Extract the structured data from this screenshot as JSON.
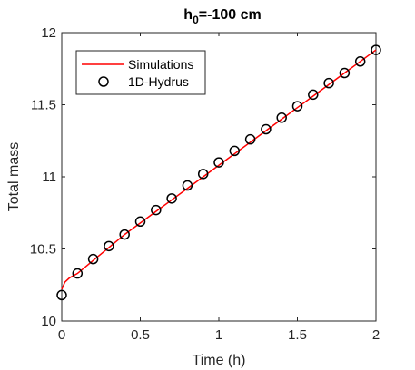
{
  "chart_data": {
    "type": "line",
    "title_main": "h",
    "title_sub": "0",
    "title_rest": "=-100 cm",
    "xlabel": "Time (h)",
    "ylabel": "Total mass",
    "xlim": [
      0,
      2
    ],
    "ylim": [
      10,
      12
    ],
    "xticks": [
      0,
      0.5,
      1,
      1.5,
      2
    ],
    "xtick_labels": [
      "0",
      "0.5",
      "1",
      "1.5",
      "2"
    ],
    "yticks": [
      10,
      10.5,
      11,
      11.5,
      12
    ],
    "ytick_labels": [
      "10",
      "10.5",
      "11",
      "11.5",
      "12"
    ],
    "grid": false,
    "legend_position": "top-left",
    "series": [
      {
        "name": "Simulations",
        "style": "line",
        "color": "#ff0000",
        "x": [
          0,
          0.02,
          0.05,
          0.1,
          0.2,
          0.3,
          0.4,
          0.5,
          0.6,
          0.7,
          0.8,
          0.9,
          1.0,
          1.1,
          1.2,
          1.3,
          1.4,
          1.5,
          1.6,
          1.7,
          1.8,
          1.9,
          2.0
        ],
        "y": [
          10.22,
          10.27,
          10.3,
          10.33,
          10.42,
          10.51,
          10.6,
          10.68,
          10.76,
          10.84,
          10.92,
          11.0,
          11.08,
          11.16,
          11.24,
          11.32,
          11.4,
          11.48,
          11.56,
          11.64,
          11.72,
          11.8,
          11.88
        ]
      },
      {
        "name": "1D-Hydrus",
        "style": "marker",
        "color": "#000000",
        "x": [
          0,
          0.1,
          0.2,
          0.3,
          0.4,
          0.5,
          0.6,
          0.7,
          0.8,
          0.9,
          1.0,
          1.1,
          1.2,
          1.3,
          1.4,
          1.5,
          1.6,
          1.7,
          1.8,
          1.9,
          2.0
        ],
        "y": [
          10.18,
          10.33,
          10.43,
          10.52,
          10.6,
          10.69,
          10.77,
          10.85,
          10.94,
          11.02,
          11.1,
          11.18,
          11.26,
          11.33,
          11.41,
          11.49,
          11.57,
          11.65,
          11.72,
          11.8,
          11.88
        ]
      }
    ]
  }
}
